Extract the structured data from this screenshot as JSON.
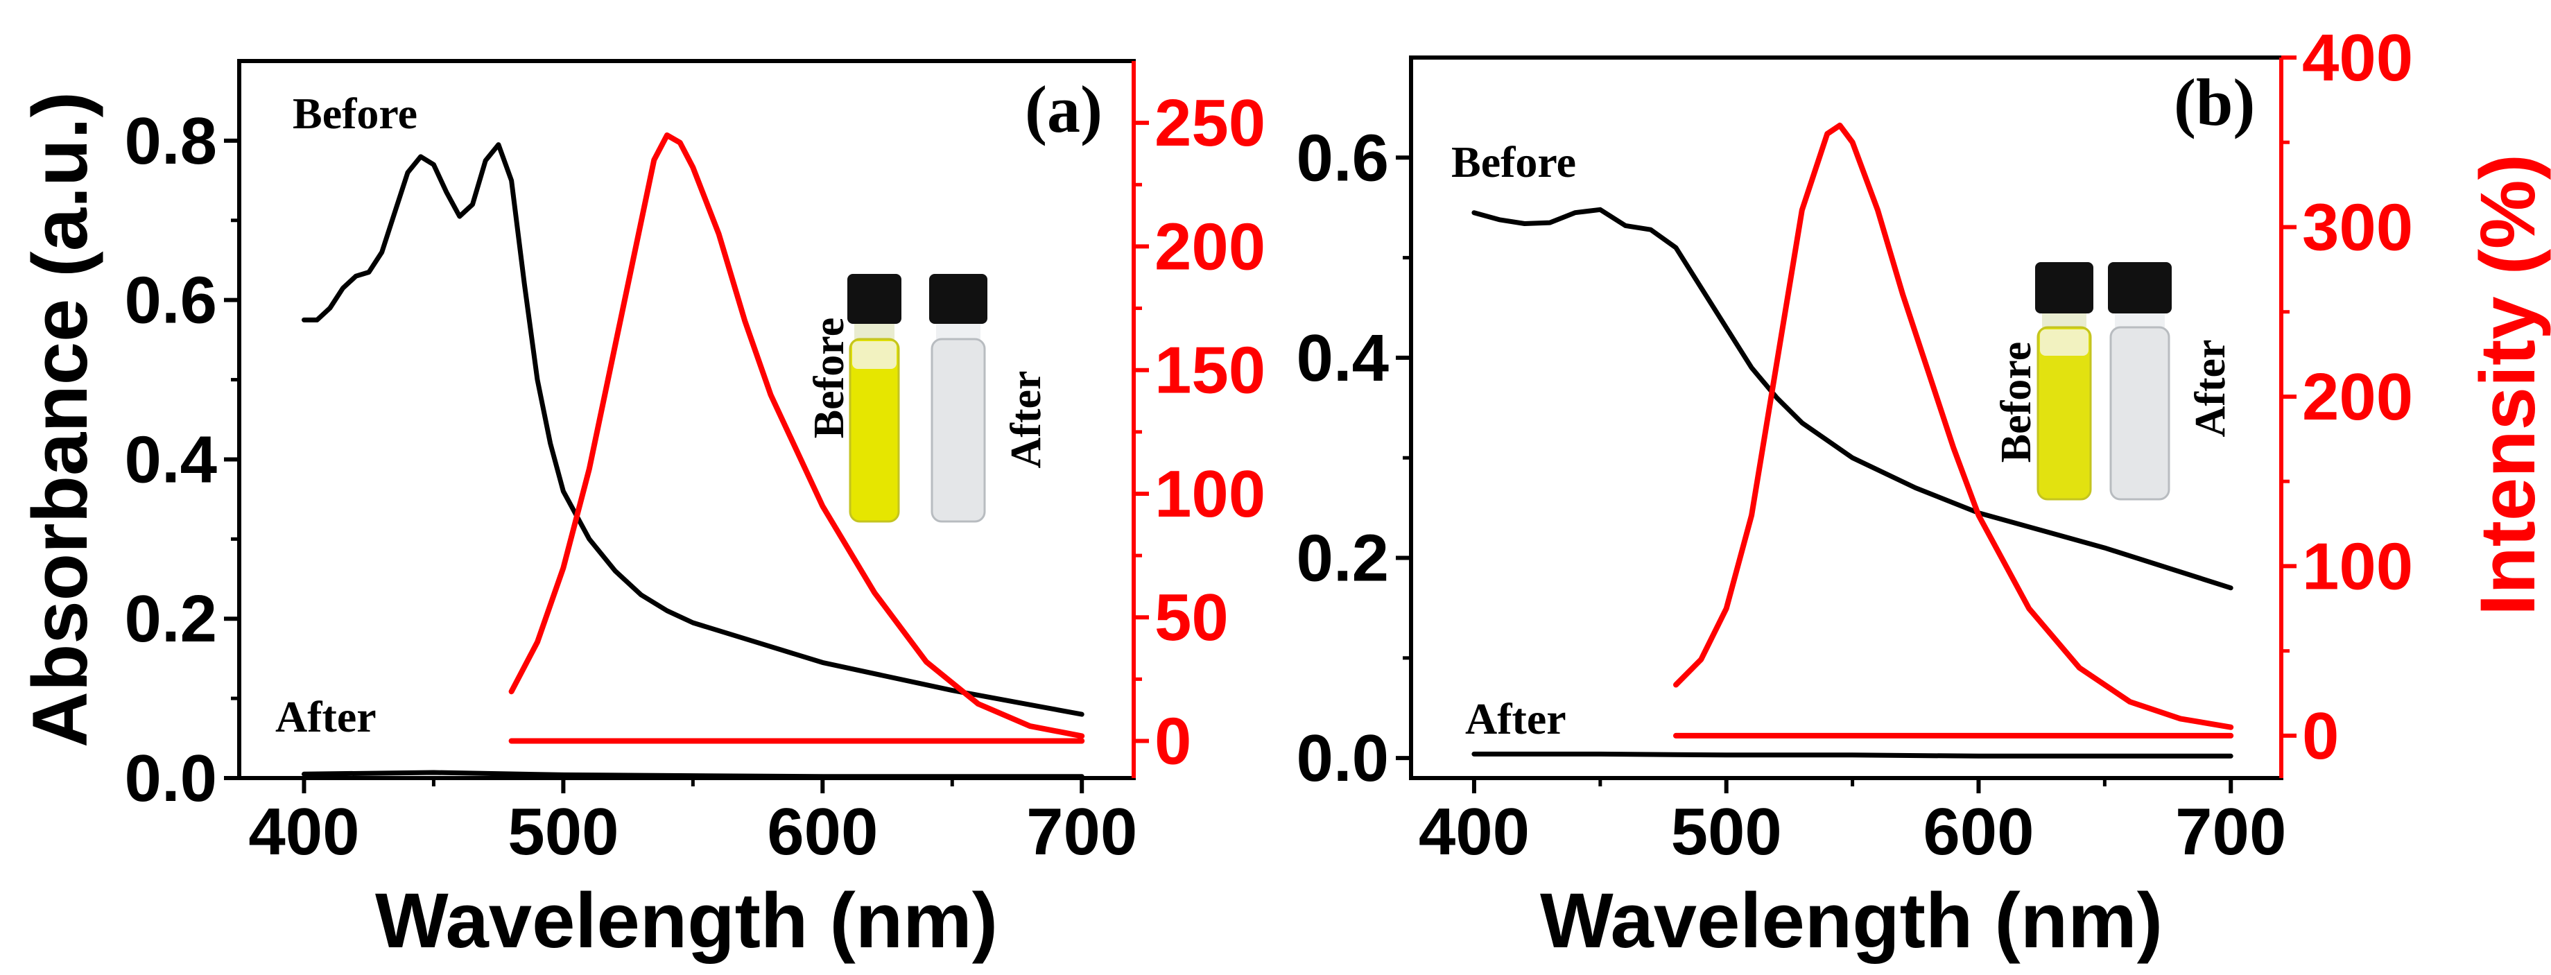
{
  "colors": {
    "absorbance": "#000000",
    "intensity": "#ff0000",
    "yellow_solution": "#e6e600",
    "clear_solution": "#e4e6e8"
  },
  "chart_data": [
    {
      "panel": "(a)",
      "type": "line",
      "xlabel": "Wavelength (nm)",
      "ylabel": "Absorbance (a.u.)",
      "ylabel_right": "",
      "xlim": [
        375,
        720
      ],
      "ylim": [
        0,
        0.9
      ],
      "ylim_right": [
        -15,
        275
      ],
      "xticks": [
        400,
        500,
        600,
        700
      ],
      "yticks": [
        0.0,
        0.2,
        0.4,
        0.6,
        0.8
      ],
      "yticks_right": [
        0,
        50,
        100,
        150,
        200,
        250
      ],
      "legend_labels": {
        "before": "Before",
        "after": "After"
      },
      "inset_labels": {
        "before": "Before",
        "after": "After"
      },
      "series": [
        {
          "name": "Absorbance Before",
          "axis": "left",
          "color": "#000000",
          "x": [
            400,
            405,
            410,
            415,
            420,
            425,
            430,
            435,
            440,
            445,
            450,
            455,
            460,
            465,
            470,
            475,
            480,
            485,
            490,
            495,
            500,
            510,
            520,
            530,
            540,
            550,
            575,
            600,
            650,
            700
          ],
          "y": [
            0.575,
            0.575,
            0.59,
            0.615,
            0.63,
            0.635,
            0.66,
            0.71,
            0.76,
            0.78,
            0.77,
            0.735,
            0.705,
            0.72,
            0.775,
            0.795,
            0.75,
            0.62,
            0.5,
            0.42,
            0.36,
            0.3,
            0.26,
            0.23,
            0.21,
            0.195,
            0.17,
            0.145,
            0.11,
            0.08
          ]
        },
        {
          "name": "Absorbance After",
          "axis": "left",
          "color": "#000000",
          "x": [
            400,
            450,
            500,
            550,
            600,
            650,
            700
          ],
          "y": [
            0.005,
            0.007,
            0.004,
            0.003,
            0.002,
            0.002,
            0.002
          ]
        },
        {
          "name": "Intensity Before",
          "axis": "right",
          "color": "#ff0000",
          "x": [
            480,
            490,
            500,
            510,
            520,
            530,
            535,
            540,
            545,
            550,
            560,
            570,
            580,
            600,
            620,
            640,
            660,
            680,
            700
          ],
          "y": [
            20,
            40,
            70,
            110,
            160,
            210,
            235,
            245,
            242,
            232,
            205,
            170,
            140,
            95,
            60,
            32,
            15,
            6,
            2
          ]
        },
        {
          "name": "Intensity After",
          "axis": "right",
          "color": "#ff0000",
          "x": [
            480,
            700
          ],
          "y": [
            0,
            0
          ]
        }
      ]
    },
    {
      "panel": "(b)",
      "type": "line",
      "xlabel": "Wavelength (nm)",
      "ylabel": "",
      "ylabel_right": "Intensity (%)",
      "xlim": [
        375,
        720
      ],
      "ylim": [
        -0.02,
        0.7
      ],
      "ylim_right": [
        -25,
        400
      ],
      "xticks": [
        400,
        500,
        600,
        700
      ],
      "yticks": [
        0.0,
        0.2,
        0.4,
        0.6
      ],
      "yticks_right": [
        0,
        100,
        200,
        300,
        400
      ],
      "legend_labels": {
        "before": "Before",
        "after": "After"
      },
      "inset_labels": {
        "before": "Before",
        "after": "After"
      },
      "series": [
        {
          "name": "Absorbance Before",
          "axis": "left",
          "color": "#000000",
          "x": [
            400,
            410,
            420,
            430,
            440,
            450,
            460,
            470,
            480,
            490,
            500,
            510,
            520,
            530,
            550,
            575,
            600,
            650,
            700
          ],
          "y": [
            0.545,
            0.538,
            0.534,
            0.535,
            0.545,
            0.548,
            0.532,
            0.528,
            0.51,
            0.47,
            0.43,
            0.39,
            0.36,
            0.335,
            0.3,
            0.27,
            0.245,
            0.21,
            0.17
          ]
        },
        {
          "name": "Absorbance After",
          "axis": "left",
          "color": "#000000",
          "x": [
            400,
            450,
            500,
            550,
            600,
            650,
            700
          ],
          "y": [
            0.004,
            0.004,
            0.003,
            0.003,
            0.002,
            0.002,
            0.002
          ]
        },
        {
          "name": "Intensity Before",
          "axis": "right",
          "color": "#ff0000",
          "x": [
            480,
            490,
            500,
            510,
            520,
            530,
            540,
            545,
            550,
            560,
            570,
            580,
            590,
            600,
            620,
            640,
            660,
            680,
            700
          ],
          "y": [
            30,
            45,
            75,
            130,
            220,
            310,
            355,
            360,
            350,
            310,
            260,
            215,
            170,
            130,
            75,
            40,
            20,
            10,
            5
          ]
        },
        {
          "name": "Intensity After",
          "axis": "right",
          "color": "#ff0000",
          "x": [
            480,
            700
          ],
          "y": [
            0,
            0
          ]
        }
      ]
    }
  ]
}
